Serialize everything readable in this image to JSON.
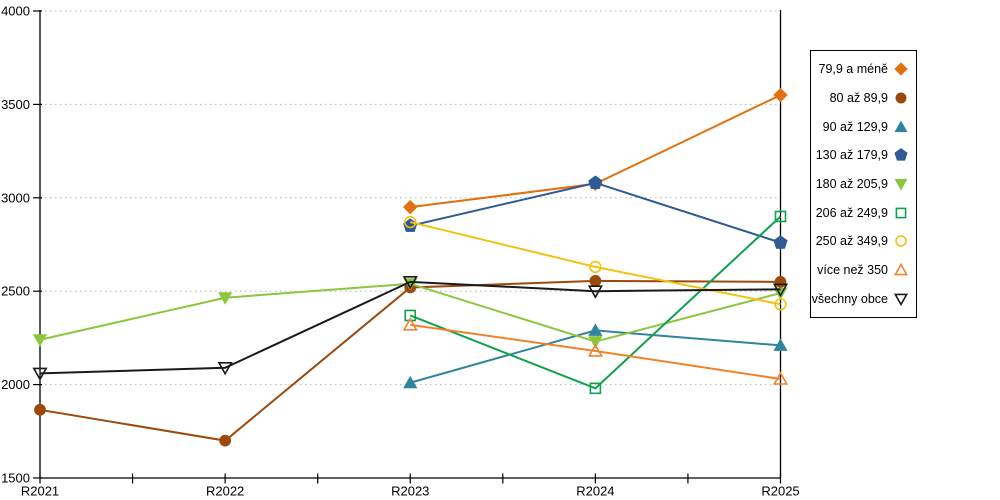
{
  "chart_data": {
    "type": "line",
    "title": "",
    "xlabel": "",
    "ylabel": "",
    "categories": [
      "R2021",
      "R2022",
      "R2023",
      "R2024",
      "R2025"
    ],
    "ylim": [
      1500,
      4000
    ],
    "yticks": [
      1500,
      2000,
      2500,
      3000,
      3500,
      4000
    ],
    "grid": "horizontal-dotted",
    "legend_position": "right",
    "series": [
      {
        "name": "79,9 a méně",
        "color": "#E2700D",
        "marker": "diamond",
        "fill": "solid",
        "values": [
          null,
          null,
          2950,
          3075,
          3550
        ]
      },
      {
        "name": "80 až 89,9",
        "color": "#9C4A0C",
        "marker": "circle",
        "fill": "solid",
        "values": [
          1865,
          1700,
          2520,
          2555,
          2550
        ]
      },
      {
        "name": "90 až 129,9",
        "color": "#31849B",
        "marker": "triangle-up",
        "fill": "solid",
        "values": [
          null,
          null,
          2010,
          2290,
          2210
        ]
      },
      {
        "name": "130 až 179,9",
        "color": "#2F5A93",
        "marker": "pentagon",
        "fill": "solid",
        "values": [
          null,
          null,
          2850,
          3080,
          2760
        ]
      },
      {
        "name": "180 až 205,9",
        "color": "#8CC63F",
        "marker": "triangle-down",
        "fill": "solid",
        "values": [
          2240,
          2465,
          2540,
          2230,
          2490
        ]
      },
      {
        "name": "206 až 249,9",
        "color": "#0FA24E",
        "marker": "square",
        "fill": "hollow",
        "values": [
          null,
          null,
          2370,
          1980,
          2900
        ]
      },
      {
        "name": "250 až 349,9",
        "color": "#F2C211",
        "marker": "circle",
        "fill": "hollow",
        "values": [
          null,
          null,
          2870,
          2630,
          2430
        ]
      },
      {
        "name": "více než 350",
        "color": "#F0822D",
        "marker": "triangle-up",
        "fill": "hollow",
        "values": [
          null,
          null,
          2320,
          2180,
          2030
        ]
      },
      {
        "name": "všechny obce",
        "color": "#1A1A1A",
        "marker": "triangle-down",
        "fill": "hollow",
        "values": [
          2060,
          2090,
          2550,
          2500,
          2510
        ]
      }
    ]
  }
}
